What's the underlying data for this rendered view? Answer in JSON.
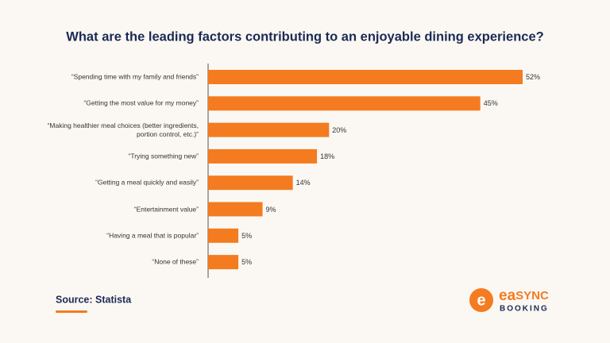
{
  "chart_data": {
    "type": "bar",
    "orientation": "horizontal",
    "title": "What are the leading factors contributing to an enjoyable dining experience?",
    "categories": [
      "“Spending time with my family and friends”",
      "“Getting the most value for my money”",
      "“Making healthier meal choices (better ingredients, portion control, etc.)”",
      "“Trying something new”",
      "“Getting a meal quickly and easily”",
      "“Entertainment value”",
      "“Having a meal that is popular”",
      "“None of these”"
    ],
    "values": [
      52,
      45,
      20,
      18,
      14,
      9,
      5,
      5
    ],
    "value_labels": [
      "52%",
      "45%",
      "20%",
      "18%",
      "14%",
      "9%",
      "5%",
      "5%"
    ],
    "color": "#f47b20"
  },
  "source": "Source: Statista",
  "logo": {
    "part1": "ea",
    "part2": "SYNC",
    "tagline": "BOOKING"
  }
}
